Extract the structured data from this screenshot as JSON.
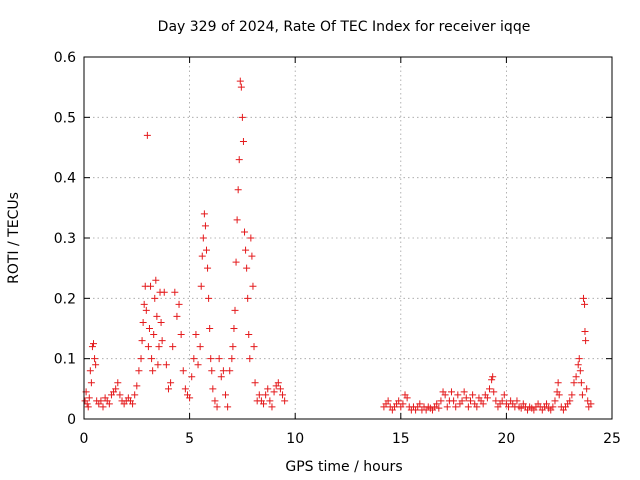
{
  "chart_data": {
    "type": "scatter",
    "title": "Day 329 of 2024, Rate Of TEC Index for receiver iqqe",
    "xlabel": "GPS time / hours",
    "ylabel": "ROTI / TECUs",
    "xlim": [
      0,
      25
    ],
    "ylim": [
      0,
      0.6
    ],
    "xticks": [
      "0",
      "5",
      "10",
      "15",
      "20",
      "25"
    ],
    "yticks": [
      "0",
      "0.1",
      "0.2",
      "0.3",
      "0.4",
      "0.5",
      "0.6"
    ],
    "grid": true,
    "legend": "none",
    "marker": "+",
    "color": "#e41a1c",
    "series": [
      {
        "points": [
          [
            0.05,
            0.03
          ],
          [
            0.1,
            0.045
          ],
          [
            0.15,
            0.025
          ],
          [
            0.2,
            0.02
          ],
          [
            0.25,
            0.035
          ],
          [
            0.3,
            0.08
          ],
          [
            0.35,
            0.06
          ],
          [
            0.4,
            0.12
          ],
          [
            0.45,
            0.125
          ],
          [
            0.5,
            0.1
          ],
          [
            0.55,
            0.09
          ],
          [
            0.6,
            0.03
          ],
          [
            0.7,
            0.025
          ],
          [
            0.8,
            0.03
          ],
          [
            0.9,
            0.02
          ],
          [
            1.0,
            0.035
          ],
          [
            1.1,
            0.03
          ],
          [
            1.2,
            0.025
          ],
          [
            1.3,
            0.04
          ],
          [
            1.4,
            0.045
          ],
          [
            1.5,
            0.05
          ],
          [
            1.6,
            0.06
          ],
          [
            1.7,
            0.04
          ],
          [
            1.8,
            0.03
          ],
          [
            1.9,
            0.025
          ],
          [
            2.0,
            0.03
          ],
          [
            2.1,
            0.035
          ],
          [
            2.2,
            0.03
          ],
          [
            2.3,
            0.025
          ],
          [
            2.4,
            0.04
          ],
          [
            2.5,
            0.055
          ],
          [
            2.6,
            0.08
          ],
          [
            2.7,
            0.1
          ],
          [
            2.75,
            0.13
          ],
          [
            2.8,
            0.16
          ],
          [
            2.85,
            0.19
          ],
          [
            2.9,
            0.22
          ],
          [
            2.95,
            0.18
          ],
          [
            3.0,
            0.47
          ],
          [
            3.05,
            0.12
          ],
          [
            3.1,
            0.15
          ],
          [
            3.15,
            0.22
          ],
          [
            3.2,
            0.1
          ],
          [
            3.25,
            0.08
          ],
          [
            3.3,
            0.14
          ],
          [
            3.35,
            0.2
          ],
          [
            3.4,
            0.23
          ],
          [
            3.45,
            0.17
          ],
          [
            3.5,
            0.09
          ],
          [
            3.55,
            0.12
          ],
          [
            3.6,
            0.21
          ],
          [
            3.65,
            0.16
          ],
          [
            3.7,
            0.13
          ],
          [
            3.8,
            0.21
          ],
          [
            3.9,
            0.09
          ],
          [
            4.0,
            0.05
          ],
          [
            4.1,
            0.06
          ],
          [
            4.2,
            0.12
          ],
          [
            4.3,
            0.21
          ],
          [
            4.4,
            0.17
          ],
          [
            4.5,
            0.19
          ],
          [
            4.6,
            0.14
          ],
          [
            4.7,
            0.08
          ],
          [
            4.8,
            0.05
          ],
          [
            4.9,
            0.04
          ],
          [
            5.0,
            0.035
          ],
          [
            5.1,
            0.07
          ],
          [
            5.2,
            0.1
          ],
          [
            5.3,
            0.14
          ],
          [
            5.4,
            0.09
          ],
          [
            5.5,
            0.12
          ],
          [
            5.55,
            0.22
          ],
          [
            5.6,
            0.27
          ],
          [
            5.65,
            0.3
          ],
          [
            5.7,
            0.34
          ],
          [
            5.75,
            0.32
          ],
          [
            5.8,
            0.28
          ],
          [
            5.85,
            0.25
          ],
          [
            5.9,
            0.2
          ],
          [
            5.95,
            0.15
          ],
          [
            6.0,
            0.1
          ],
          [
            6.05,
            0.08
          ],
          [
            6.1,
            0.05
          ],
          [
            6.2,
            0.03
          ],
          [
            6.3,
            0.02
          ],
          [
            6.4,
            0.1
          ],
          [
            6.5,
            0.07
          ],
          [
            6.6,
            0.08
          ],
          [
            6.7,
            0.04
          ],
          [
            6.8,
            0.02
          ],
          [
            6.9,
            0.08
          ],
          [
            7.0,
            0.1
          ],
          [
            7.05,
            0.12
          ],
          [
            7.1,
            0.15
          ],
          [
            7.15,
            0.18
          ],
          [
            7.2,
            0.26
          ],
          [
            7.25,
            0.33
          ],
          [
            7.3,
            0.38
          ],
          [
            7.35,
            0.43
          ],
          [
            7.4,
            0.56
          ],
          [
            7.45,
            0.55
          ],
          [
            7.5,
            0.5
          ],
          [
            7.55,
            0.46
          ],
          [
            7.6,
            0.31
          ],
          [
            7.65,
            0.28
          ],
          [
            7.7,
            0.25
          ],
          [
            7.75,
            0.2
          ],
          [
            7.8,
            0.14
          ],
          [
            7.85,
            0.1
          ],
          [
            7.9,
            0.3
          ],
          [
            7.95,
            0.27
          ],
          [
            8.0,
            0.22
          ],
          [
            8.05,
            0.12
          ],
          [
            8.1,
            0.06
          ],
          [
            8.2,
            0.03
          ],
          [
            8.3,
            0.04
          ],
          [
            8.4,
            0.03
          ],
          [
            8.5,
            0.025
          ],
          [
            8.6,
            0.04
          ],
          [
            8.7,
            0.05
          ],
          [
            8.8,
            0.03
          ],
          [
            8.9,
            0.02
          ],
          [
            9.0,
            0.045
          ],
          [
            9.1,
            0.055
          ],
          [
            9.2,
            0.06
          ],
          [
            9.3,
            0.05
          ],
          [
            9.4,
            0.04
          ],
          [
            9.5,
            0.03
          ],
          [
            14.2,
            0.02
          ],
          [
            14.3,
            0.025
          ],
          [
            14.4,
            0.03
          ],
          [
            14.5,
            0.02
          ],
          [
            14.6,
            0.015
          ],
          [
            14.7,
            0.02
          ],
          [
            14.8,
            0.025
          ],
          [
            14.9,
            0.03
          ],
          [
            15.0,
            0.02
          ],
          [
            15.1,
            0.025
          ],
          [
            15.2,
            0.04
          ],
          [
            15.3,
            0.035
          ],
          [
            15.4,
            0.02
          ],
          [
            15.5,
            0.015
          ],
          [
            15.6,
            0.02
          ],
          [
            15.7,
            0.015
          ],
          [
            15.8,
            0.02
          ],
          [
            15.9,
            0.025
          ],
          [
            16.0,
            0.015
          ],
          [
            16.1,
            0.02
          ],
          [
            16.2,
            0.015
          ],
          [
            16.3,
            0.02
          ],
          [
            16.4,
            0.018
          ],
          [
            16.5,
            0.015
          ],
          [
            16.6,
            0.02
          ],
          [
            16.7,
            0.025
          ],
          [
            16.8,
            0.018
          ],
          [
            16.9,
            0.03
          ],
          [
            17.0,
            0.045
          ],
          [
            17.1,
            0.04
          ],
          [
            17.2,
            0.02
          ],
          [
            17.3,
            0.03
          ],
          [
            17.4,
            0.045
          ],
          [
            17.5,
            0.03
          ],
          [
            17.6,
            0.02
          ],
          [
            17.7,
            0.04
          ],
          [
            17.8,
            0.025
          ],
          [
            17.9,
            0.03
          ],
          [
            18.0,
            0.045
          ],
          [
            18.1,
            0.035
          ],
          [
            18.2,
            0.02
          ],
          [
            18.3,
            0.03
          ],
          [
            18.4,
            0.04
          ],
          [
            18.5,
            0.025
          ],
          [
            18.6,
            0.02
          ],
          [
            18.7,
            0.035
          ],
          [
            18.8,
            0.03
          ],
          [
            18.9,
            0.025
          ],
          [
            19.0,
            0.04
          ],
          [
            19.1,
            0.035
          ],
          [
            19.2,
            0.05
          ],
          [
            19.3,
            0.065
          ],
          [
            19.35,
            0.07
          ],
          [
            19.4,
            0.045
          ],
          [
            19.5,
            0.03
          ],
          [
            19.6,
            0.02
          ],
          [
            19.7,
            0.025
          ],
          [
            19.8,
            0.03
          ],
          [
            19.9,
            0.04
          ],
          [
            20.0,
            0.025
          ],
          [
            20.1,
            0.02
          ],
          [
            20.2,
            0.03
          ],
          [
            20.3,
            0.025
          ],
          [
            20.4,
            0.02
          ],
          [
            20.5,
            0.03
          ],
          [
            20.6,
            0.02
          ],
          [
            20.7,
            0.018
          ],
          [
            20.8,
            0.025
          ],
          [
            20.9,
            0.02
          ],
          [
            21.0,
            0.015
          ],
          [
            21.1,
            0.02
          ],
          [
            21.2,
            0.018
          ],
          [
            21.3,
            0.015
          ],
          [
            21.4,
            0.02
          ],
          [
            21.5,
            0.025
          ],
          [
            21.6,
            0.02
          ],
          [
            21.7,
            0.015
          ],
          [
            21.8,
            0.02
          ],
          [
            21.9,
            0.025
          ],
          [
            22.0,
            0.018
          ],
          [
            22.1,
            0.015
          ],
          [
            22.2,
            0.02
          ],
          [
            22.3,
            0.03
          ],
          [
            22.4,
            0.045
          ],
          [
            22.45,
            0.06
          ],
          [
            22.5,
            0.04
          ],
          [
            22.6,
            0.02
          ],
          [
            22.7,
            0.015
          ],
          [
            22.8,
            0.02
          ],
          [
            22.9,
            0.025
          ],
          [
            23.0,
            0.03
          ],
          [
            23.1,
            0.04
          ],
          [
            23.2,
            0.06
          ],
          [
            23.3,
            0.07
          ],
          [
            23.4,
            0.09
          ],
          [
            23.45,
            0.1
          ],
          [
            23.5,
            0.08
          ],
          [
            23.55,
            0.06
          ],
          [
            23.6,
            0.04
          ],
          [
            23.65,
            0.2
          ],
          [
            23.7,
            0.19
          ],
          [
            23.72,
            0.145
          ],
          [
            23.75,
            0.13
          ],
          [
            23.8,
            0.05
          ],
          [
            23.85,
            0.03
          ],
          [
            23.9,
            0.02
          ],
          [
            24.0,
            0.025
          ]
        ]
      }
    ]
  }
}
